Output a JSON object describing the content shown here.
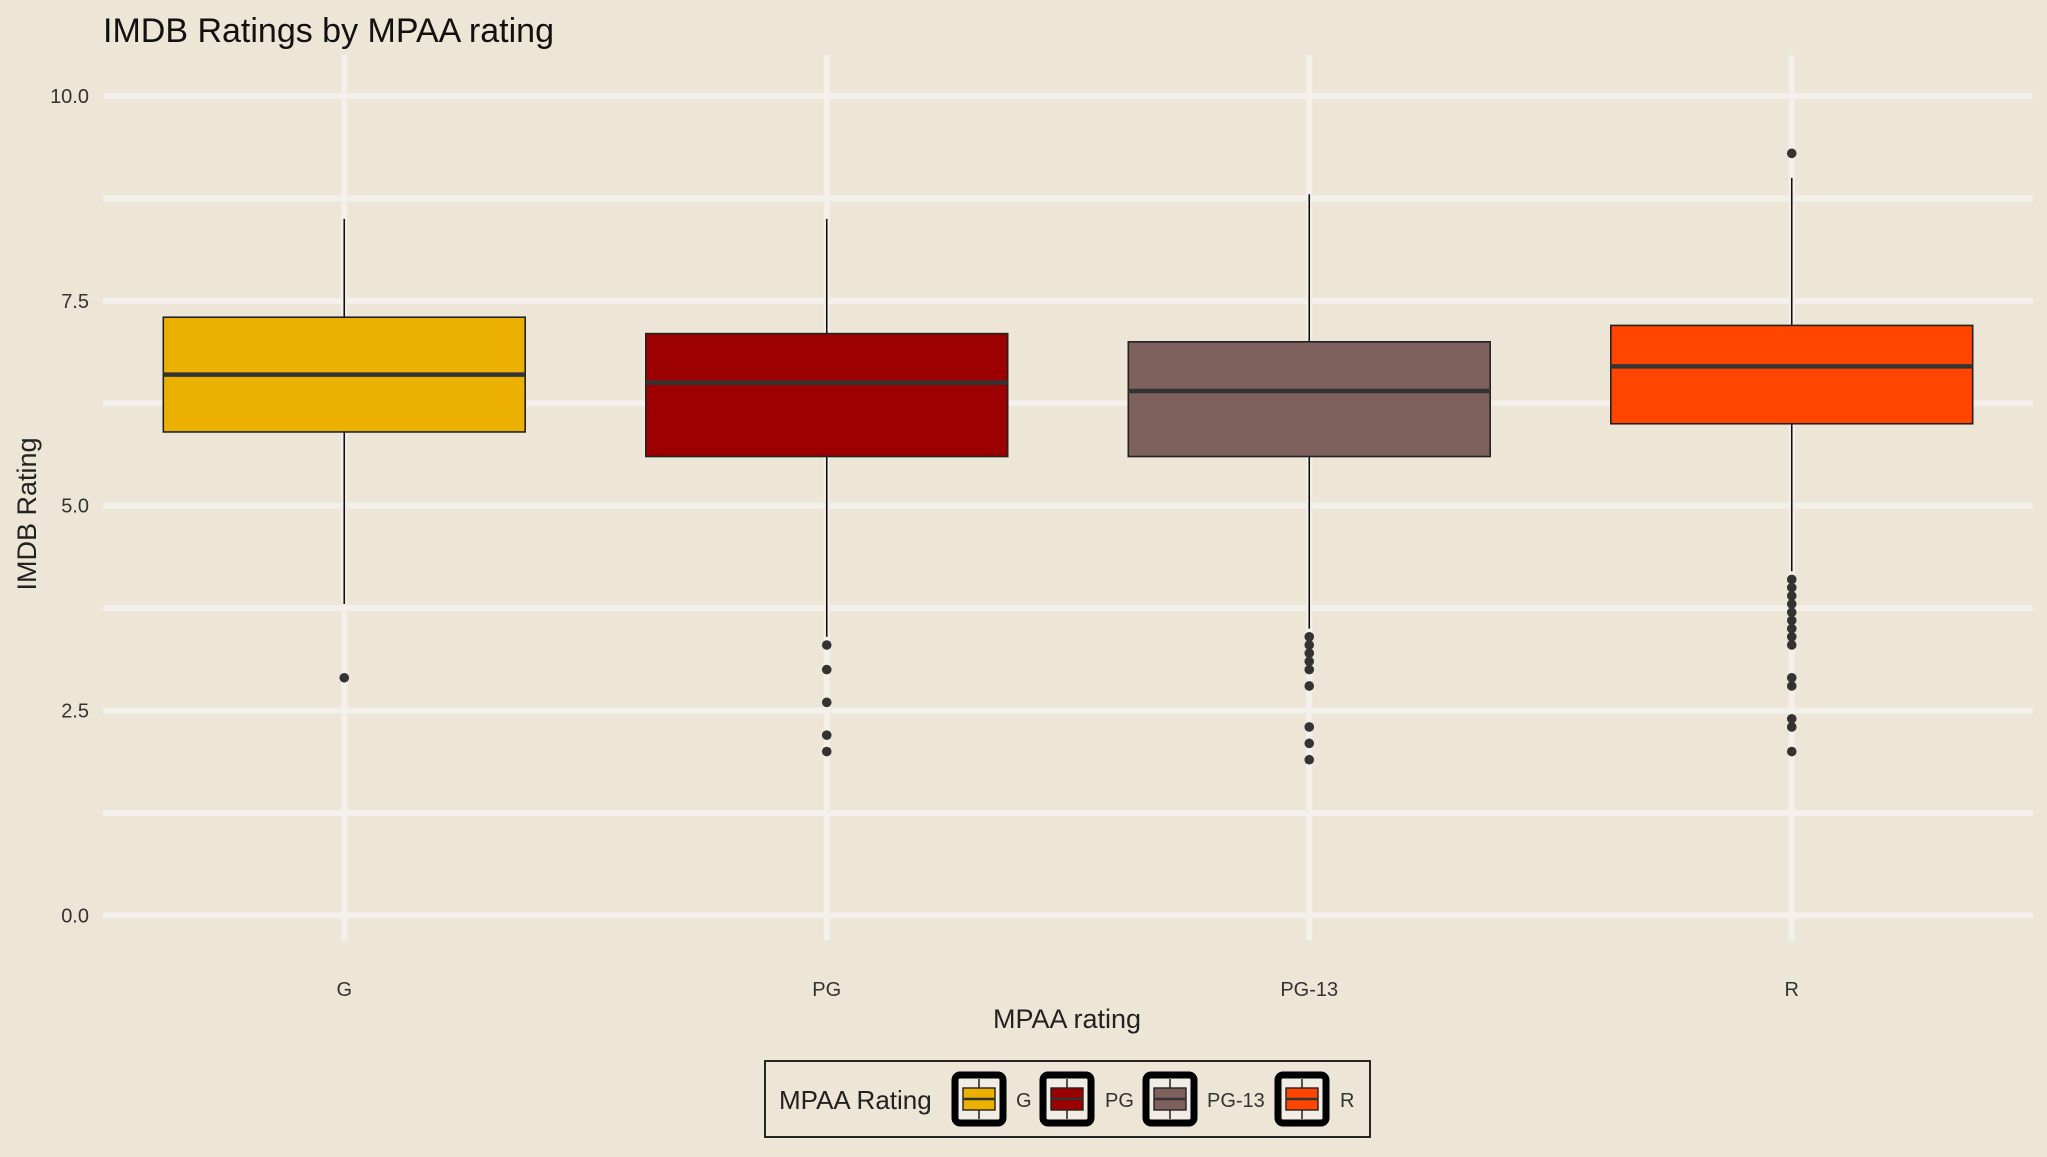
{
  "chart_data": {
    "type": "box",
    "title": "IMDB Ratings by MPAA rating",
    "xlabel": "MPAA rating",
    "ylabel": "IMDB Rating",
    "ylim": [
      -0.3,
      10.5
    ],
    "yticks": [
      0.0,
      2.5,
      5.0,
      7.5,
      10.0
    ],
    "ytick_labels": [
      "0.0",
      "2.5",
      "5.0",
      "7.5",
      "10.0"
    ],
    "y_minor_gridlines": [
      1.25,
      3.75,
      6.25,
      8.75
    ],
    "grid": true,
    "categories": [
      "G",
      "PG",
      "PG-13",
      "R"
    ],
    "boxes": [
      {
        "category": "G",
        "color": "#ebb000",
        "whisker_low": 3.8,
        "q1": 5.9,
        "median": 6.6,
        "q3": 7.3,
        "whisker_high": 8.5,
        "outliers": [
          2.9
        ]
      },
      {
        "category": "PG",
        "color": "#9c0000",
        "whisker_low": 3.4,
        "q1": 5.6,
        "median": 6.5,
        "q3": 7.1,
        "whisker_high": 8.5,
        "outliers": [
          3.3,
          3.0,
          2.6,
          2.2,
          2.0
        ]
      },
      {
        "category": "PG-13",
        "color": "#7e605c",
        "whisker_low": 3.5,
        "q1": 5.6,
        "median": 6.4,
        "q3": 7.0,
        "whisker_high": 8.8,
        "outliers": [
          3.4,
          3.3,
          3.2,
          3.1,
          3.0,
          2.8,
          2.3,
          2.1,
          1.9
        ]
      },
      {
        "category": "R",
        "color": "#ff4500",
        "whisker_low": 4.2,
        "q1": 6.0,
        "median": 6.7,
        "q3": 7.2,
        "whisker_high": 9.0,
        "outliers": [
          9.3,
          4.1,
          4.0,
          3.9,
          3.8,
          3.7,
          3.6,
          3.5,
          3.4,
          3.3,
          2.9,
          2.8,
          2.4,
          2.3,
          2.0
        ]
      }
    ],
    "legend": {
      "title": "MPAA Rating",
      "position": "bottom",
      "entries": [
        {
          "label": "G",
          "color": "#ebb000"
        },
        {
          "label": "PG",
          "color": "#9c0000"
        },
        {
          "label": "PG-13",
          "color": "#7e605c"
        },
        {
          "label": "R",
          "color": "#ff4500"
        }
      ]
    }
  }
}
